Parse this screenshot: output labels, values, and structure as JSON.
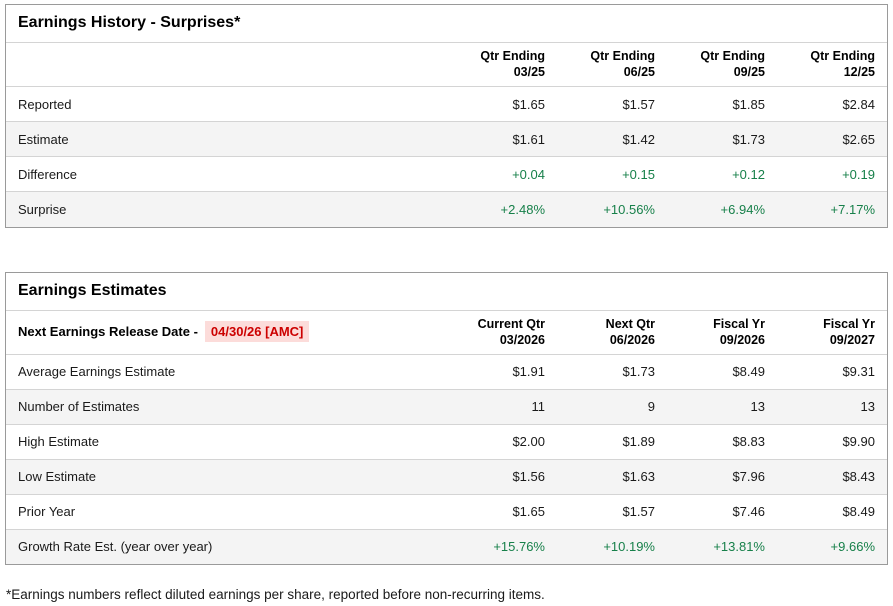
{
  "colors": {
    "green": "#17804a",
    "red": "#cc0000",
    "red-bg": "#fcdcda",
    "stripe": "#f4f4f4",
    "border": "#d4d4d4",
    "border-outer": "#9a9a9a",
    "text": "#1a1a1a"
  },
  "history": {
    "title": "Earnings History - Surprises*",
    "columns": [
      {
        "line1": "Qtr Ending",
        "line2": "03/25"
      },
      {
        "line1": "Qtr Ending",
        "line2": "06/25"
      },
      {
        "line1": "Qtr Ending",
        "line2": "09/25"
      },
      {
        "line1": "Qtr Ending",
        "line2": "12/25"
      }
    ],
    "rows": [
      {
        "label": "Reported",
        "values": [
          "$1.65",
          "$1.57",
          "$1.85",
          "$2.84"
        ]
      },
      {
        "label": "Estimate",
        "values": [
          "$1.61",
          "$1.42",
          "$1.73",
          "$2.65"
        ]
      },
      {
        "label": "Difference",
        "values": [
          "+0.04",
          "+0.15",
          "+0.12",
          "+0.19"
        ]
      },
      {
        "label": "Surprise",
        "values": [
          "+2.48%",
          "+10.56%",
          "+6.94%",
          "+7.17%"
        ]
      }
    ]
  },
  "estimates": {
    "title": "Earnings Estimates",
    "release_label": "Next Earnings Release Date -",
    "release_date": "04/30/26 [AMC]",
    "columns": [
      {
        "line1": "Current Qtr",
        "line2": "03/2026"
      },
      {
        "line1": "Next Qtr",
        "line2": "06/2026"
      },
      {
        "line1": "Fiscal Yr",
        "line2": "09/2026"
      },
      {
        "line1": "Fiscal Yr",
        "line2": "09/2027"
      }
    ],
    "rows": [
      {
        "label": "Average Earnings Estimate",
        "values": [
          "$1.91",
          "$1.73",
          "$8.49",
          "$9.31"
        ]
      },
      {
        "label": "Number of Estimates",
        "values": [
          "11",
          "9",
          "13",
          "13"
        ]
      },
      {
        "label": "High Estimate",
        "values": [
          "$2.00",
          "$1.89",
          "$8.83",
          "$9.90"
        ]
      },
      {
        "label": "Low Estimate",
        "values": [
          "$1.56",
          "$1.63",
          "$7.96",
          "$8.43"
        ]
      },
      {
        "label": "Prior Year",
        "values": [
          "$1.65",
          "$1.57",
          "$7.46",
          "$8.49"
        ]
      },
      {
        "label": "Growth Rate Est. (year over year)",
        "values": [
          "+15.76%",
          "+10.19%",
          "+13.81%",
          "+9.66%"
        ]
      }
    ]
  },
  "footnote": "*Earnings numbers reflect diluted earnings per share, reported before non-recurring items."
}
